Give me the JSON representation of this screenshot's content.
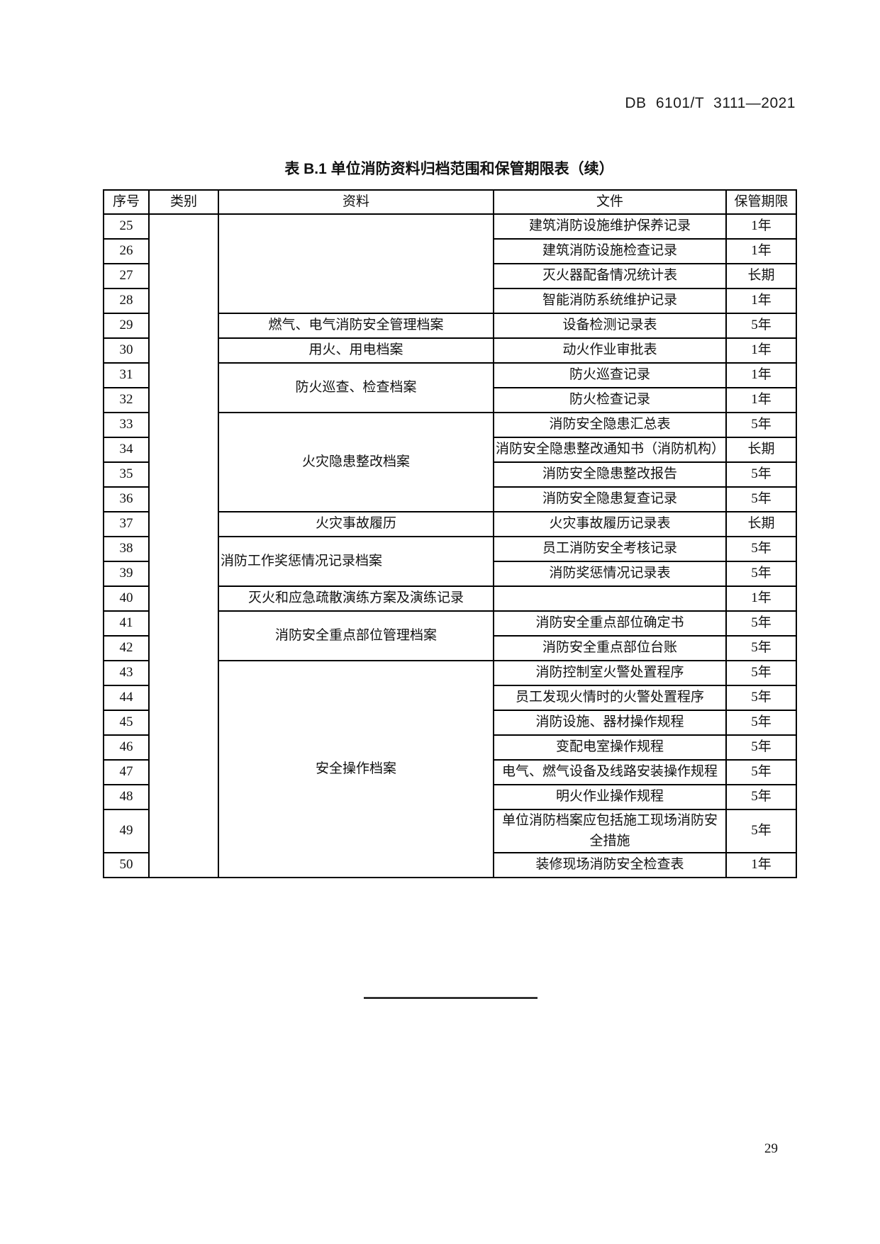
{
  "page": {
    "doc_code": "DB 6101/T 3111—2021",
    "page_number": "29"
  },
  "table": {
    "title": "表 B.1 单位消防资料归档范围和保管期限表（续）",
    "columns": [
      "序号",
      "类别",
      "资料",
      "文件",
      "保管期限"
    ],
    "category_cell": {
      "text": "",
      "rowspan": 26
    },
    "rows": [
      {
        "no": "25",
        "material": {
          "text": "",
          "rowspan": 4
        },
        "file": "建筑消防设施维护保养记录",
        "period": "1年"
      },
      {
        "no": "26",
        "file": "建筑消防设施检查记录",
        "period": "1年"
      },
      {
        "no": "27",
        "file": "灭火器配备情况统计表",
        "period": "长期"
      },
      {
        "no": "28",
        "file": "智能消防系统维护记录",
        "period": "1年"
      },
      {
        "no": "29",
        "material": {
          "text": "燃气、电气消防安全管理档案",
          "rowspan": 1
        },
        "file": "设备检测记录表",
        "period": "5年"
      },
      {
        "no": "30",
        "material": {
          "text": "用火、用电档案",
          "rowspan": 1
        },
        "file": "动火作业审批表",
        "period": "1年"
      },
      {
        "no": "31",
        "material": {
          "text": "防火巡查、检查档案",
          "rowspan": 2
        },
        "file": "防火巡查记录",
        "period": "1年"
      },
      {
        "no": "32",
        "file": "防火检查记录",
        "period": "1年"
      },
      {
        "no": "33",
        "material": {
          "text": "火灾隐患整改档案",
          "rowspan": 4
        },
        "file": "消防安全隐患汇总表",
        "period": "5年"
      },
      {
        "no": "34",
        "file": "消防安全隐患整改通知书（消防机构）",
        "period": "长期"
      },
      {
        "no": "35",
        "file": "消防安全隐患整改报告",
        "period": "5年"
      },
      {
        "no": "36",
        "file": "消防安全隐患复查记录",
        "period": "5年"
      },
      {
        "no": "37",
        "material": {
          "text": "火灾事故履历",
          "rowspan": 1
        },
        "file": "火灾事故履历记录表",
        "period": "长期"
      },
      {
        "no": "38",
        "material": {
          "text": "消防工作奖惩情况记录档案",
          "rowspan": 2,
          "align": "left"
        },
        "file": "员工消防安全考核记录",
        "period": "5年"
      },
      {
        "no": "39",
        "file": "消防奖惩情况记录表",
        "period": "5年"
      },
      {
        "no": "40",
        "material": {
          "text": "灭火和应急疏散演练方案及演练记录",
          "rowspan": 1
        },
        "file": "",
        "period": "1年"
      },
      {
        "no": "41",
        "material": {
          "text": "消防安全重点部位管理档案",
          "rowspan": 2
        },
        "file": "消防安全重点部位确定书",
        "period": "5年"
      },
      {
        "no": "42",
        "file": "消防安全重点部位台账",
        "period": "5年"
      },
      {
        "no": "43",
        "material": {
          "text": "安全操作档案",
          "rowspan": 8
        },
        "file": "消防控制室火警处置程序",
        "period": "5年"
      },
      {
        "no": "44",
        "file": "员工发现火情时的火警处置程序",
        "period": "5年"
      },
      {
        "no": "45",
        "file": "消防设施、器材操作规程",
        "period": "5年"
      },
      {
        "no": "46",
        "file": "变配电室操作规程",
        "period": "5年"
      },
      {
        "no": "47",
        "file": "电气、燃气设备及线路安装操作规程",
        "period": "5年"
      },
      {
        "no": "48",
        "file": "明火作业操作规程",
        "period": "5年"
      },
      {
        "no": "49",
        "file": "单位消防档案应包括施工现场消防安全措施",
        "period": "5年"
      },
      {
        "no": "50",
        "file": "装修现场消防安全检查表",
        "period": "1年"
      }
    ]
  }
}
